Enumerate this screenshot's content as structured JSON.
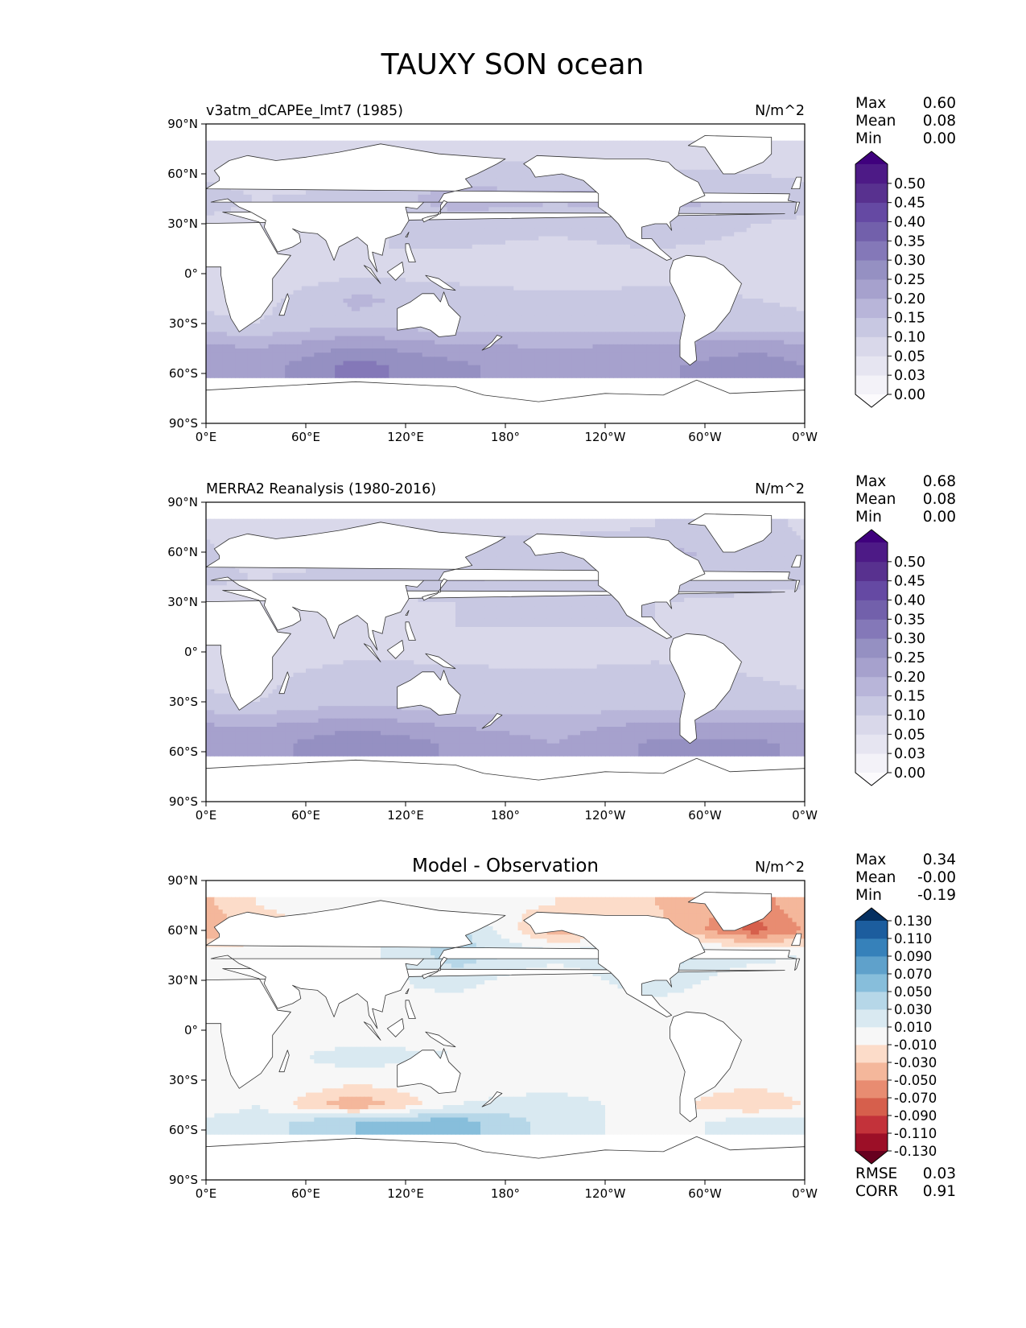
{
  "title": "TAUXY SON ocean",
  "lon_ticks": [
    "0°E",
    "60°E",
    "120°E",
    "180°",
    "120°W",
    "60°W",
    "0°W"
  ],
  "lat_ticks": [
    "90°N",
    "60°N",
    "30°N",
    "0°",
    "30°S",
    "60°S",
    "90°S"
  ],
  "colors": {
    "land": "#ffffff",
    "coast": "#333333",
    "purples": [
      "#fcfbfd",
      "#f3f2f8",
      "#e6e5f1",
      "#d9d8ea",
      "#c8c8e2",
      "#b8b5d9",
      "#a6a1cd",
      "#9590c2",
      "#8478b8",
      "#7260ab",
      "#6549a3",
      "#58318f",
      "#4d1a86",
      "#3f007d"
    ],
    "diverging": [
      "#67001f",
      "#9c0f27",
      "#c3323a",
      "#d65f4c",
      "#e88c71",
      "#f4b79b",
      "#fcdcc9",
      "#f7f7f7",
      "#d9e9f1",
      "#b6d7e8",
      "#87bedb",
      "#5fa1cb",
      "#3681ba",
      "#1c5d9e",
      "#053061"
    ]
  },
  "chart_data": [
    {
      "type": "heatmap",
      "name": "model",
      "title": "v3atm_dCAPEe_lmt7 (1985)",
      "units": "N/m^2",
      "stats": {
        "labels": [
          "Max",
          "Mean",
          "Min"
        ],
        "values": [
          "0.60",
          "0.08",
          "0.00"
        ]
      },
      "colorbar": {
        "levels": [
          "0.00",
          "0.03",
          "0.05",
          "0.10",
          "0.15",
          "0.20",
          "0.25",
          "0.30",
          "0.35",
          "0.40",
          "0.45",
          "0.50"
        ],
        "extend": "both"
      },
      "field": {
        "lat": [
          75,
          60,
          45,
          30,
          15,
          0,
          -15,
          -30,
          -45,
          -55
        ],
        "values": [
          [
            0.06,
            0.06,
            0.08,
            0.08,
            0.07,
            0.06
          ],
          [
            0.08,
            0.09,
            0.12,
            0.12,
            0.11,
            0.1
          ],
          [
            0.1,
            0.11,
            0.18,
            0.16,
            0.18,
            0.14
          ],
          [
            0.08,
            0.09,
            0.12,
            0.11,
            0.13,
            0.1
          ],
          [
            0.08,
            0.1,
            0.1,
            0.09,
            0.1,
            0.09
          ],
          [
            0.06,
            0.09,
            0.08,
            0.07,
            0.08,
            0.07
          ],
          [
            0.08,
            0.16,
            0.13,
            0.11,
            0.12,
            0.1
          ],
          [
            0.1,
            0.14,
            0.11,
            0.12,
            0.11,
            0.12
          ],
          [
            0.2,
            0.26,
            0.22,
            0.2,
            0.22,
            0.24
          ],
          [
            0.22,
            0.32,
            0.26,
            0.22,
            0.24,
            0.28
          ]
        ]
      }
    },
    {
      "type": "heatmap",
      "name": "obs",
      "title": "MERRA2 Reanalysis (1980-2016)",
      "units": "N/m^2",
      "stats": {
        "labels": [
          "Max",
          "Mean",
          "Min"
        ],
        "values": [
          "0.68",
          "0.08",
          "0.00"
        ]
      },
      "colorbar": {
        "levels": [
          "0.00",
          "0.03",
          "0.05",
          "0.10",
          "0.15",
          "0.20",
          "0.25",
          "0.30",
          "0.35",
          "0.40",
          "0.45",
          "0.50"
        ],
        "extend": "both"
      },
      "field": {
        "lat": [
          75,
          60,
          45,
          30,
          15,
          0,
          -15,
          -30,
          -45,
          -55
        ],
        "values": [
          [
            0.06,
            0.06,
            0.08,
            0.08,
            0.1,
            0.12
          ],
          [
            0.08,
            0.09,
            0.12,
            0.14,
            0.16,
            0.14
          ],
          [
            0.1,
            0.11,
            0.16,
            0.14,
            0.14,
            0.12
          ],
          [
            0.08,
            0.09,
            0.1,
            0.1,
            0.1,
            0.09
          ],
          [
            0.08,
            0.09,
            0.1,
            0.1,
            0.1,
            0.09
          ],
          [
            0.06,
            0.08,
            0.08,
            0.07,
            0.08,
            0.07
          ],
          [
            0.08,
            0.14,
            0.12,
            0.11,
            0.13,
            0.1
          ],
          [
            0.1,
            0.14,
            0.11,
            0.12,
            0.11,
            0.12
          ],
          [
            0.2,
            0.24,
            0.2,
            0.18,
            0.22,
            0.22
          ],
          [
            0.22,
            0.3,
            0.24,
            0.2,
            0.26,
            0.26
          ]
        ]
      }
    },
    {
      "type": "heatmap",
      "name": "diff",
      "title": "Model - Observation",
      "units": "N/m^2",
      "stats": {
        "labels": [
          "Max",
          "Mean",
          "Min"
        ],
        "values": [
          "0.34",
          "-0.00",
          "-0.19"
        ]
      },
      "colorbar": {
        "levels": [
          "-0.130",
          "-0.110",
          "-0.090",
          "-0.070",
          "-0.050",
          "-0.030",
          "-0.010",
          "0.010",
          "0.030",
          "0.050",
          "0.070",
          "0.090",
          "0.110",
          "0.130"
        ],
        "extend": "both"
      },
      "metrics": {
        "labels": [
          "RMSE",
          "CORR"
        ],
        "values": [
          "0.03",
          "0.91"
        ]
      },
      "field": {
        "lat": [
          75,
          60,
          45,
          30,
          15,
          0,
          -15,
          -30,
          -45,
          -55
        ],
        "values": [
          [
            -0.01,
            0.0,
            0.0,
            -0.01,
            -0.03,
            -0.06
          ],
          [
            -0.02,
            0.0,
            0.04,
            -0.04,
            -0.02,
            -0.08
          ],
          [
            0.0,
            0.0,
            0.04,
            0.02,
            0.04,
            0.02
          ],
          [
            0.0,
            0.0,
            0.02,
            -0.01,
            0.03,
            -0.01
          ],
          [
            0.0,
            0.01,
            0.0,
            -0.01,
            0.0,
            -0.01
          ],
          [
            0.0,
            -0.01,
            0.0,
            0.0,
            0.0,
            0.0
          ],
          [
            0.0,
            0.02,
            0.01,
            0.0,
            -0.01,
            0.0
          ],
          [
            0.01,
            0.0,
            0.0,
            0.0,
            0.0,
            0.0
          ],
          [
            0.01,
            -0.05,
            0.01,
            0.02,
            0.0,
            -0.03
          ],
          [
            0.02,
            0.05,
            0.06,
            0.02,
            0.0,
            0.02
          ]
        ]
      }
    }
  ]
}
